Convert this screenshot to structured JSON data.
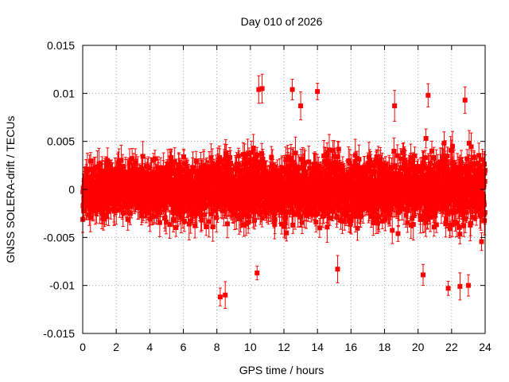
{
  "chart_data": {
    "type": "scatter",
    "title": "Day 010 of 2026",
    "xlabel": "GPS time / hours",
    "ylabel": "GNSS SOLERA-drift / TECUs",
    "xlim": [
      0,
      24
    ],
    "ylim": [
      -0.015,
      0.015
    ],
    "x_ticks": [
      0,
      2,
      4,
      6,
      8,
      10,
      12,
      14,
      16,
      18,
      20,
      22,
      24
    ],
    "x_tick_labels": [
      "0",
      "2",
      "4",
      "6",
      "8",
      "10",
      "12",
      "14",
      "16",
      "18",
      "20",
      "22",
      "24"
    ],
    "y_ticks": [
      -0.015,
      -0.01,
      -0.005,
      0,
      0.005,
      0.01,
      0.015
    ],
    "y_tick_labels": [
      "-0.015",
      "-0.01",
      "-0.005",
      "0",
      "0.005",
      "0.01",
      "0.015"
    ],
    "grid": true,
    "series_color": "#ff0000",
    "typical_error_bar": 0.0012,
    "n_points": 2880,
    "envelope": {
      "hours": [
        0,
        2,
        4,
        6,
        8,
        10,
        12,
        14,
        16,
        18,
        20,
        22,
        24
      ],
      "spread": [
        0.0033,
        0.0036,
        0.0038,
        0.0037,
        0.0038,
        0.0041,
        0.004,
        0.0041,
        0.0039,
        0.0038,
        0.0044,
        0.0045,
        0.004
      ]
    },
    "outliers": [
      {
        "x": 8.2,
        "y": -0.0112
      },
      {
        "x": 8.5,
        "y": -0.011
      },
      {
        "x": 10.5,
        "y": 0.0104
      },
      {
        "x": 10.7,
        "y": 0.0105
      },
      {
        "x": 10.4,
        "y": -0.0087
      },
      {
        "x": 12.5,
        "y": 0.0104
      },
      {
        "x": 14.0,
        "y": 0.0102
      },
      {
        "x": 20.6,
        "y": 0.0098
      },
      {
        "x": 21.8,
        "y": -0.0103
      },
      {
        "x": 22.5,
        "y": -0.0101
      },
      {
        "x": 23.0,
        "y": -0.01
      },
      {
        "x": 15.2,
        "y": -0.0083
      },
      {
        "x": 18.6,
        "y": 0.0087
      },
      {
        "x": 20.3,
        "y": -0.0089
      },
      {
        "x": 13.0,
        "y": 0.0087
      },
      {
        "x": 22.8,
        "y": 0.0093
      }
    ]
  }
}
